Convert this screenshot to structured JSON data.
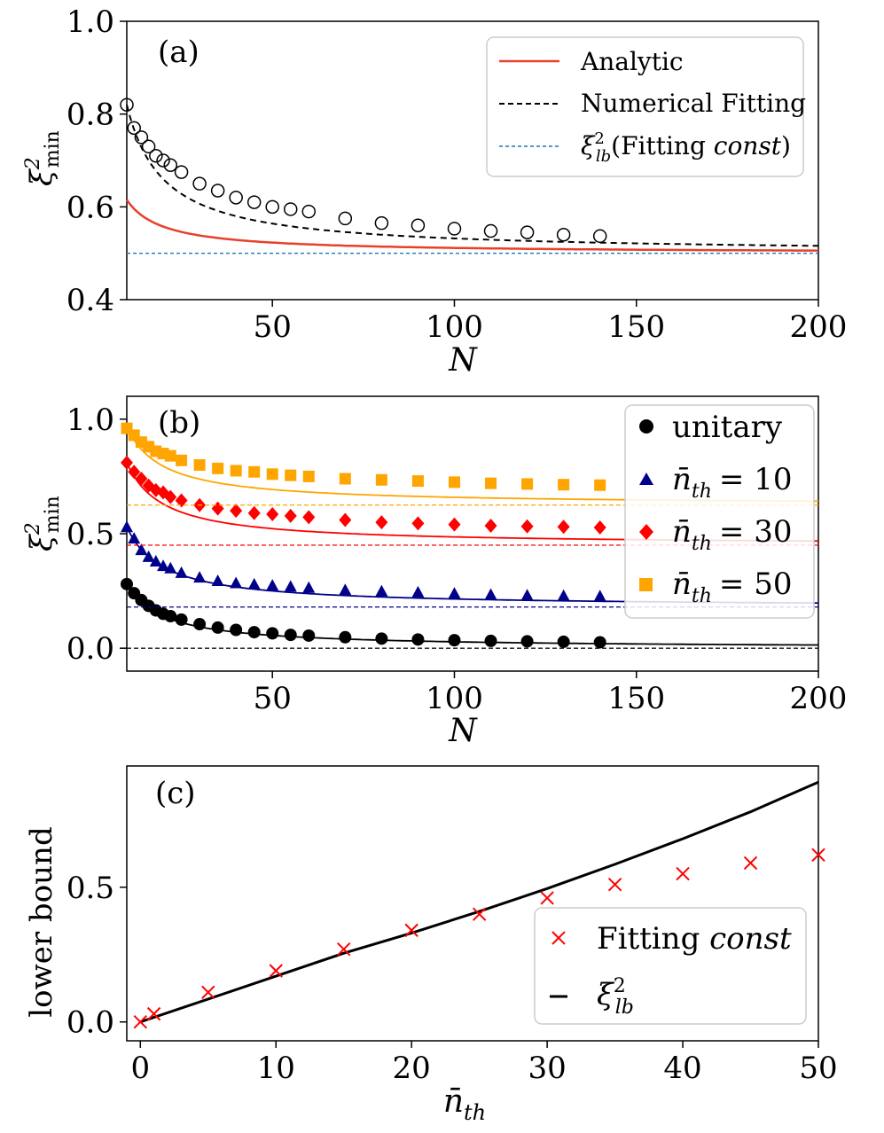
{
  "chart_data": [
    {
      "panel": "(a)",
      "type": "line",
      "xlabel": "N",
      "ylabel": "ξ²min",
      "xlim": [
        10,
        200
      ],
      "ylim": [
        0.4,
        1.0
      ],
      "xticks": [
        "50",
        "100",
        "150",
        "200"
      ],
      "yticks": [
        "0.4",
        "0.6",
        "0.8",
        "1.0"
      ],
      "legend_position": "top-right",
      "series": [
        {
          "name": "Analytic",
          "style": "solid",
          "color": "#e8402a",
          "const": 0.5,
          "amp": 1.15
        },
        {
          "name": "Numerical Fitting",
          "style": "dashed",
          "color": "#000000",
          "const": 0.5,
          "amp": 3.2
        },
        {
          "name": "ξ²lb(Fitting const)",
          "style": "dashed",
          "color": "#1f77b4",
          "value": 0.5
        }
      ],
      "markers": {
        "x": [
          10,
          12,
          14,
          16,
          18,
          20,
          22,
          25,
          30,
          35,
          40,
          45,
          50,
          55,
          60,
          70,
          80,
          90,
          100,
          110,
          120,
          130,
          140
        ],
        "y": [
          0.82,
          0.77,
          0.75,
          0.73,
          0.71,
          0.7,
          0.69,
          0.675,
          0.65,
          0.635,
          0.62,
          0.61,
          0.6,
          0.595,
          0.59,
          0.575,
          0.565,
          0.56,
          0.553,
          0.548,
          0.545,
          0.54,
          0.537
        ]
      }
    },
    {
      "panel": "(b)",
      "type": "line",
      "xlabel": "N",
      "ylabel": "ξ²min",
      "xlim": [
        10,
        200
      ],
      "ylim": [
        -0.1,
        1.1
      ],
      "xticks": [
        "50",
        "100",
        "150",
        "200"
      ],
      "yticks": [
        "0.0",
        "0.5",
        "1.0"
      ],
      "legend_position": "top-right",
      "x": [
        10,
        12,
        14,
        16,
        18,
        20,
        22,
        25,
        30,
        35,
        40,
        45,
        50,
        55,
        60,
        70,
        80,
        90,
        100,
        110,
        120,
        130,
        140
      ],
      "series": [
        {
          "name": "unitary",
          "color": "#000000",
          "marker": "circle",
          "const": 0.0,
          "amp": 2.8,
          "values": [
            0.28,
            0.24,
            0.21,
            0.185,
            0.165,
            0.15,
            0.14,
            0.125,
            0.105,
            0.09,
            0.08,
            0.07,
            0.065,
            0.058,
            0.055,
            0.048,
            0.042,
            0.038,
            0.035,
            0.032,
            0.03,
            0.028,
            0.026
          ]
        },
        {
          "name": "n̄th = 10",
          "color": "#00008b",
          "marker": "triangle",
          "const": 0.18,
          "amp": 3.5,
          "values": [
            0.53,
            0.48,
            0.43,
            0.4,
            0.38,
            0.36,
            0.35,
            0.33,
            0.31,
            0.295,
            0.285,
            0.28,
            0.275,
            0.27,
            0.265,
            0.255,
            0.25,
            0.245,
            0.24,
            0.235,
            0.232,
            0.23,
            0.228
          ]
        },
        {
          "name": "n̄th = 30",
          "color": "#ff0000",
          "marker": "diamond",
          "const": 0.45,
          "amp": 3.6,
          "values": [
            0.81,
            0.77,
            0.74,
            0.71,
            0.69,
            0.68,
            0.66,
            0.645,
            0.625,
            0.61,
            0.6,
            0.59,
            0.585,
            0.578,
            0.572,
            0.56,
            0.55,
            0.545,
            0.54,
            0.535,
            0.532,
            0.53,
            0.527
          ]
        },
        {
          "name": "n̄th = 50",
          "color": "#ffa500",
          "marker": "square",
          "const": 0.625,
          "amp": 3.4,
          "values": [
            0.96,
            0.93,
            0.9,
            0.88,
            0.86,
            0.85,
            0.84,
            0.82,
            0.8,
            0.785,
            0.775,
            0.77,
            0.76,
            0.755,
            0.75,
            0.74,
            0.735,
            0.73,
            0.725,
            0.72,
            0.717,
            0.714,
            0.712
          ]
        }
      ],
      "limits": [
        0.0,
        0.18,
        0.45,
        0.625
      ]
    },
    {
      "panel": "(c)",
      "type": "scatter",
      "xlabel": "n̄th",
      "ylabel": "lower bound",
      "xlim": [
        -1,
        50
      ],
      "ylim": [
        -0.07,
        0.95
      ],
      "xticks": [
        "0",
        "10",
        "20",
        "30",
        "40",
        "50"
      ],
      "yticks": [
        "0.0",
        "0.5"
      ],
      "legend_position": "bottom-right",
      "series": [
        {
          "name": "Fitting const",
          "color": "#ff0000",
          "marker": "x",
          "x": [
            0,
            1,
            5,
            10,
            15,
            20,
            25,
            30,
            35,
            40,
            45,
            50
          ],
          "y": [
            0.0,
            0.03,
            0.11,
            0.19,
            0.27,
            0.34,
            0.4,
            0.46,
            0.51,
            0.55,
            0.59,
            0.62
          ]
        },
        {
          "name": "ξ²lb",
          "color": "#000000",
          "style": "solid",
          "x": [
            0,
            5,
            10,
            15,
            20,
            25,
            30,
            35,
            40,
            45,
            50
          ],
          "y": [
            0.0,
            0.085,
            0.17,
            0.255,
            0.33,
            0.41,
            0.495,
            0.585,
            0.68,
            0.78,
            0.89
          ]
        }
      ]
    }
  ],
  "labels": {
    "panel_a": "(a)",
    "panel_b": "(b)",
    "panel_c": "(c)",
    "xlabel_ab": "N",
    "ylabel_c": "lower bound",
    "leg_a_1": "Analytic",
    "leg_a_2": "Numerical Fitting",
    "leg_a_3_xi": "ξ",
    "leg_a_3_sup": "2",
    "leg_a_3_sub": "lb",
    "leg_a_3_pre": "(Fitting ",
    "leg_a_3_it": "const",
    "leg_a_3_post": ")",
    "leg_b_1": "unitary",
    "leg_b_2": "n̄",
    "leg_b_sub": "th",
    "leg_b_2v": "= 10",
    "leg_b_3v": "= 30",
    "leg_b_4v": "= 50",
    "leg_c_1a": "Fitting ",
    "leg_c_1b": "const",
    "leg_c_2": "ξ",
    "leg_c_2sup": "2",
    "leg_c_2sub": "lb",
    "ylab_xi": "ξ",
    "ylab_sup": "2",
    "ylab_sub": "min",
    "xlab_c": "n̄",
    "xlab_c_sub": "th"
  }
}
